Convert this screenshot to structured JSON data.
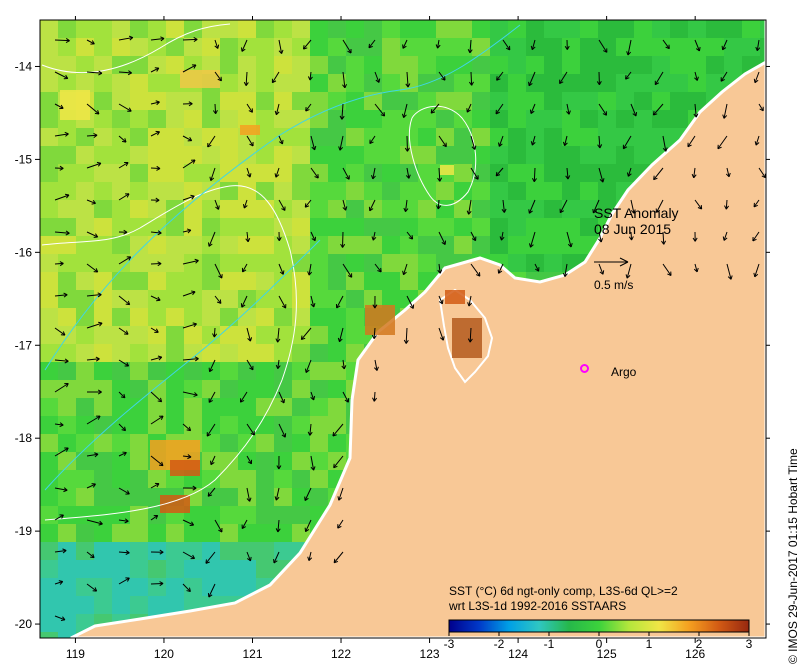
{
  "map": {
    "title_lines": [
      "SST Anomaly",
      "08 Jun 2015"
    ],
    "velocity_scale_label": "0.5 m/s",
    "argo_label": "Argo",
    "credit": "© IMOS 29-Jun-2017 01:15 Hobart Time",
    "colors": {
      "land": "#f8c896",
      "coast": "#ffffff",
      "argo_marker": "#ff00ff",
      "contour_white": "#ffffff",
      "contour_cyan": "#3fd6e6"
    },
    "lon_range": [
      118.6,
      126.8
    ],
    "lat_range": [
      -20.15,
      -13.5
    ],
    "x_ticks": [
      "119",
      "120",
      "121",
      "122",
      "123",
      "124",
      "125",
      "126"
    ],
    "y_ticks": [
      "-14",
      "-15",
      "-16",
      "-17",
      "-18",
      "-19",
      "-20"
    ],
    "argo_position": {
      "lon": 124.75,
      "lat": -17.25
    }
  },
  "colorbar": {
    "caption_line1": "SST (°C) 6d ngt-only comp, L3S-6d QL>=2",
    "caption_line2": "wrt L3S-1d 1992-2016 SSTAARS",
    "ticks": [
      "-3",
      "-2",
      "-1",
      "0",
      "1",
      "2",
      "3"
    ],
    "range": [
      -3,
      3
    ],
    "colors": [
      "#00008c",
      "#0039c8",
      "#00a0e6",
      "#2fc6c2",
      "#26b84a",
      "#3cd23c",
      "#b4e63c",
      "#f0e646",
      "#f5a020",
      "#d25a14",
      "#962810"
    ]
  }
}
